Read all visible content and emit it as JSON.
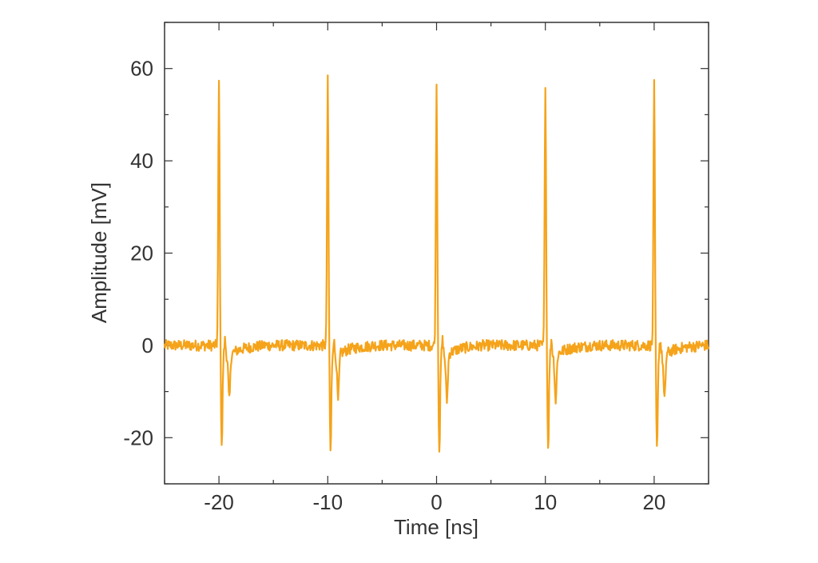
{
  "chart_data": {
    "type": "line",
    "title": "",
    "xlabel": "Time [ns]",
    "ylabel": "Amplitude [mV]",
    "xlim": [
      -25,
      25
    ],
    "ylim": [
      -30,
      70
    ],
    "xticks": [
      -20,
      -10,
      0,
      10,
      20
    ],
    "yticks": [
      -20,
      0,
      20,
      40,
      60
    ],
    "x_minor_step": 5,
    "y_minor_step": 10,
    "grid": false,
    "legend": "none",
    "color": "#f5a31a",
    "baseline_mV": 0,
    "noise_amplitude_mV": 1.2,
    "pulses": [
      {
        "t": -20,
        "peak": 57.2,
        "min": -21.0
      },
      {
        "t": -10,
        "peak": 57.4,
        "min": -22.8
      },
      {
        "t": 0,
        "peak": 56.3,
        "min": -22.2
      },
      {
        "t": 10,
        "peak": 57.0,
        "min": -21.6
      },
      {
        "t": 20,
        "peak": 56.4,
        "min": -22.5
      }
    ]
  }
}
